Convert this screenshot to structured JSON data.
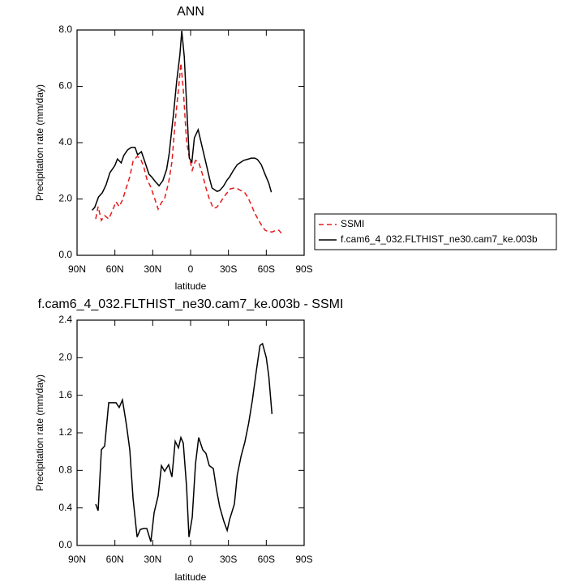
{
  "chart_data": [
    {
      "type": "line",
      "title": "ANN",
      "xlabel": "latitude",
      "ylabel": "Precipitation rate (mm/day)",
      "xlim": [
        90,
        -90
      ],
      "xticks": [
        {
          "value": 90,
          "label": "90N"
        },
        {
          "value": 60,
          "label": "60N"
        },
        {
          "value": 30,
          "label": "30N"
        },
        0,
        {
          "value": -30,
          "label": "30S"
        },
        {
          "value": -60,
          "label": "60S"
        },
        {
          "value": -90,
          "label": "90S"
        }
      ],
      "ylim": [
        0,
        8
      ],
      "yticks": [
        {
          "value": 0,
          "label": "0.0"
        },
        {
          "value": 2,
          "label": "2.0"
        },
        {
          "value": 4,
          "label": "4.0"
        },
        {
          "value": 6,
          "label": "6.0"
        },
        {
          "value": 8,
          "label": "8.0"
        }
      ],
      "legend": "right",
      "series": [
        {
          "name": "SSMI",
          "color": "#e41a1c",
          "line_style": "dashed",
          "x": [
            75.2,
            73.3,
            70.7,
            68.1,
            64.9,
            62.3,
            59.1,
            56.6,
            54,
            50.8,
            48.2,
            45.6,
            42.4,
            39.9,
            37.3,
            34.7,
            31.5,
            28.9,
            25.7,
            23.1,
            20.6,
            17.4,
            14.8,
            12.2,
            9.6,
            7.7,
            5.8,
            3.2,
            1.3,
            -1.3,
            -3.9,
            -6.4,
            -9.6,
            -12.2,
            -14.8,
            -18,
            -20.6,
            -23.1,
            -26.3,
            -29,
            -31.5,
            -34.7,
            -37.3,
            -39.8,
            -43,
            -45.6,
            -48.2,
            -50.8,
            -54,
            -56.6,
            -59.1,
            -62.3,
            -64.9,
            -67.5,
            -70,
            -72.6
          ],
          "values": [
            1.29,
            1.73,
            1.24,
            1.41,
            1.29,
            1.55,
            1.9,
            1.73,
            1.96,
            2.42,
            2.79,
            3.34,
            3.51,
            3.45,
            3.17,
            2.71,
            2.42,
            2.07,
            1.64,
            1.87,
            2.01,
            2.59,
            3.31,
            4.75,
            5.9,
            6.82,
            5.9,
            4.03,
            3.54,
            3.02,
            3.37,
            3.31,
            2.85,
            2.39,
            2.01,
            1.67,
            1.7,
            1.84,
            2.07,
            2.22,
            2.36,
            2.39,
            2.36,
            2.3,
            2.22,
            2.04,
            1.78,
            1.5,
            1.24,
            1.04,
            0.89,
            0.83,
            0.83,
            0.89,
            0.89,
            0.75
          ]
        },
        {
          "name": "f.cam6_4_032.FLTHIST_ne30.cam7_ke.003b",
          "color": "#000000",
          "line_style": "solid",
          "x": [
            78,
            76,
            73,
            70,
            67,
            64,
            60,
            58,
            55,
            53,
            50,
            47,
            44,
            42,
            39,
            37,
            33,
            31,
            28,
            25,
            22,
            19,
            17,
            13.5,
            11,
            8.5,
            7,
            5,
            2.5,
            1,
            -1,
            -3,
            -6,
            -9,
            -12,
            -15,
            -17,
            -21,
            -23,
            -26,
            -29,
            -31,
            -34,
            -37,
            -40,
            -42,
            -46,
            -48,
            -51,
            -53,
            -56,
            -59,
            -62,
            -64
          ],
          "values": [
            1.6,
            1.7,
            2.07,
            2.22,
            2.5,
            2.93,
            3.19,
            3.42,
            3.28,
            3.54,
            3.74,
            3.83,
            3.83,
            3.57,
            3.68,
            3.42,
            2.88,
            2.79,
            2.62,
            2.47,
            2.65,
            3.05,
            3.6,
            5.04,
            6.19,
            7.11,
            7.97,
            7.05,
            4.75,
            3.45,
            3.31,
            4.17,
            4.46,
            3.88,
            3.31,
            2.73,
            2.39,
            2.27,
            2.3,
            2.45,
            2.68,
            2.79,
            3.02,
            3.22,
            3.31,
            3.37,
            3.42,
            3.45,
            3.45,
            3.4,
            3.22,
            2.88,
            2.56,
            2.24
          ]
        }
      ]
    },
    {
      "type": "line",
      "title": "f.cam6_4_032.FLTHIST_ne30.cam7_ke.003b - SSMI",
      "xlabel": "latitude",
      "ylabel": "Precipitation rate (mm/day)",
      "xlim": [
        90,
        -90
      ],
      "xticks": [
        {
          "value": 90,
          "label": "90N"
        },
        {
          "value": 60,
          "label": "60N"
        },
        {
          "value": 30,
          "label": "30N"
        },
        0,
        {
          "value": -30,
          "label": "30S"
        },
        {
          "value": -60,
          "label": "60S"
        },
        {
          "value": -90,
          "label": "90S"
        }
      ],
      "ylim": [
        0,
        2.4
      ],
      "yticks": [
        {
          "value": 0,
          "label": "0.0"
        },
        0.4,
        0.8,
        1.2,
        1.6,
        2.0,
        2.4
      ],
      "series": [
        {
          "color": "#000000",
          "line_style": "solid",
          "x": [
            75.2,
            73.3,
            70.7,
            68.1,
            64.9,
            62.3,
            59.1,
            56.6,
            54,
            50.8,
            48.2,
            45.6,
            42.4,
            39.9,
            37.3,
            34.7,
            31.5,
            28.9,
            25.7,
            23.1,
            20.6,
            17.4,
            14.8,
            12.2,
            9.6,
            7.7,
            5.8,
            3.2,
            1.3,
            -1.3,
            -3.9,
            -6.4,
            -9.6,
            -12.2,
            -14.8,
            -18,
            -20.6,
            -23.1,
            -26.3,
            -29,
            -31,
            -34.7,
            -37,
            -40,
            -43,
            -46,
            -49,
            -52,
            -55,
            -57,
            -60,
            -62,
            -64.5
          ],
          "values": [
            0.44,
            0.37,
            1.02,
            1.06,
            1.52,
            1.52,
            1.52,
            1.47,
            1.55,
            1.28,
            1.02,
            0.5,
            0.09,
            0.17,
            0.18,
            0.18,
            0.04,
            0.35,
            0.53,
            0.85,
            0.79,
            0.86,
            0.73,
            1.11,
            1.04,
            1.15,
            1.09,
            0.63,
            0.09,
            0.3,
            0.87,
            1.15,
            1.02,
            0.98,
            0.85,
            0.82,
            0.59,
            0.41,
            0.26,
            0.16,
            0.28,
            0.44,
            0.75,
            0.95,
            1.1,
            1.3,
            1.55,
            1.85,
            2.13,
            2.15,
            2.0,
            1.8,
            1.4
          ]
        }
      ]
    }
  ]
}
